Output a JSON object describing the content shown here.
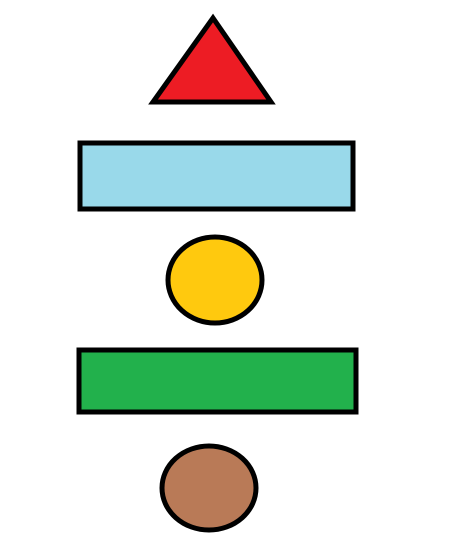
{
  "canvas": {
    "background": "#ffffff"
  },
  "shapes": [
    {
      "id": "red-triangle",
      "kind": "triangle",
      "fill": "#ed1c24",
      "stroke": "#000000"
    },
    {
      "id": "light-blue-rectangle",
      "kind": "rectangle",
      "fill": "#99d9ea",
      "stroke": "#000000"
    },
    {
      "id": "yellow-circle",
      "kind": "ellipse",
      "fill": "#ffc90e",
      "stroke": "#000000"
    },
    {
      "id": "green-rectangle",
      "kind": "rectangle",
      "fill": "#22b14c",
      "stroke": "#000000"
    },
    {
      "id": "brown-oval",
      "kind": "ellipse",
      "fill": "#b97a57",
      "stroke": "#000000"
    }
  ]
}
